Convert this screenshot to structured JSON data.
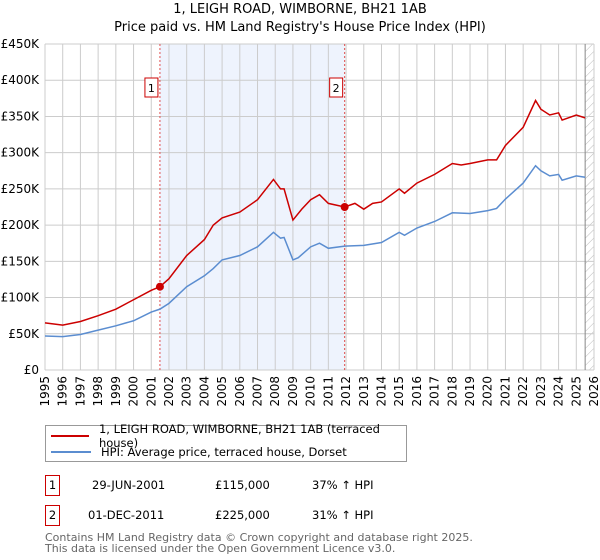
{
  "chart_data": {
    "type": "line",
    "title": "1, LEIGH ROAD, WIMBORNE, BH21 1AB",
    "subtitle": "Price paid vs. HM Land Registry's House Price Index (HPI)",
    "xlim": [
      1995,
      2026
    ],
    "ylim": [
      0,
      450000
    ],
    "yticks": [
      {
        "v": 0,
        "label": "£0"
      },
      {
        "v": 50000,
        "label": "£50K"
      },
      {
        "v": 100000,
        "label": "£100K"
      },
      {
        "v": 150000,
        "label": "£150K"
      },
      {
        "v": 200000,
        "label": "£200K"
      },
      {
        "v": 250000,
        "label": "£250K"
      },
      {
        "v": 300000,
        "label": "£300K"
      },
      {
        "v": 350000,
        "label": "£350K"
      },
      {
        "v": 400000,
        "label": "£400K"
      },
      {
        "v": 450000,
        "label": "£450K"
      }
    ],
    "xticks": [
      "1995",
      "1996",
      "1997",
      "1998",
      "1999",
      "2000",
      "2001",
      "2002",
      "2003",
      "2004",
      "2005",
      "2006",
      "2007",
      "2008",
      "2009",
      "2010",
      "2011",
      "2012",
      "2013",
      "2014",
      "2015",
      "2016",
      "2017",
      "2018",
      "2019",
      "2020",
      "2021",
      "2022",
      "2023",
      "2024",
      "2025",
      "2026"
    ],
    "grid": true,
    "shaded_range": [
      2001.49,
      2011.92
    ],
    "forecast_hatch_from": 2025.5,
    "series": [
      {
        "name": "1, LEIGH ROAD, WIMBORNE, BH21 1AB (terraced house)",
        "color": "#cc0000",
        "x": [
          1995,
          1996,
          1997,
          1998,
          1999,
          2000,
          2001,
          2001.49,
          2002,
          2003,
          2004,
          2004.5,
          2005,
          2006,
          2007,
          2007.9,
          2008.3,
          2008.5,
          2009,
          2009.5,
          2010,
          2010.5,
          2011,
          2011.92,
          2012.5,
          2013,
          2013.5,
          2014,
          2015,
          2015.3,
          2016,
          2017,
          2018,
          2018.5,
          2019,
          2020,
          2020.5,
          2021,
          2022,
          2022.7,
          2023,
          2023.5,
          2024,
          2024.2,
          2025,
          2025.5
        ],
        "y": [
          65000,
          62000,
          67000,
          75000,
          84000,
          97000,
          110000,
          115000,
          126000,
          158000,
          180000,
          200000,
          210000,
          218000,
          235000,
          263000,
          250000,
          250000,
          207000,
          222000,
          235000,
          242000,
          230000,
          225000,
          230000,
          222000,
          230000,
          232000,
          250000,
          244000,
          258000,
          270000,
          285000,
          283000,
          285000,
          290000,
          290000,
          310000,
          335000,
          372000,
          360000,
          352000,
          355000,
          345000,
          352000,
          348000
        ]
      },
      {
        "name": "HPI: Average price, terraced house, Dorset",
        "color": "#5b8dd0",
        "x": [
          1995,
          1996,
          1997,
          1998,
          1999,
          2000,
          2001,
          2001.49,
          2002,
          2003,
          2004,
          2004.5,
          2005,
          2006,
          2007,
          2007.9,
          2008.3,
          2008.5,
          2009,
          2009.3,
          2010,
          2010.5,
          2011,
          2011.92,
          2013,
          2014,
          2015,
          2015.3,
          2016,
          2017,
          2018,
          2019,
          2020,
          2020.5,
          2021,
          2022,
          2022.7,
          2023,
          2023.5,
          2024,
          2024.2,
          2025,
          2025.5
        ],
        "y": [
          47000,
          46000,
          49000,
          55000,
          61000,
          68000,
          80000,
          84000,
          92000,
          115000,
          130000,
          140000,
          152000,
          158000,
          170000,
          190000,
          182000,
          183000,
          152000,
          155000,
          170000,
          175000,
          168000,
          171000,
          172000,
          176000,
          190000,
          186000,
          196000,
          205000,
          217000,
          216000,
          220000,
          223000,
          236000,
          258000,
          282000,
          275000,
          268000,
          270000,
          262000,
          268000,
          266000
        ]
      }
    ],
    "sales": [
      {
        "id": "1",
        "x": 2001.49,
        "y": 115000,
        "date": "29-JUN-2001",
        "price": "£115,000",
        "hpi": "37% ↑ HPI"
      },
      {
        "id": "2",
        "x": 2011.92,
        "y": 225000,
        "date": "01-DEC-2011",
        "price": "£225,000",
        "hpi": "31% ↑ HPI"
      }
    ]
  },
  "footer": [
    "Contains HM Land Registry data © Crown copyright and database right 2025.",
    "This data is licensed under the Open Government Licence v3.0."
  ]
}
